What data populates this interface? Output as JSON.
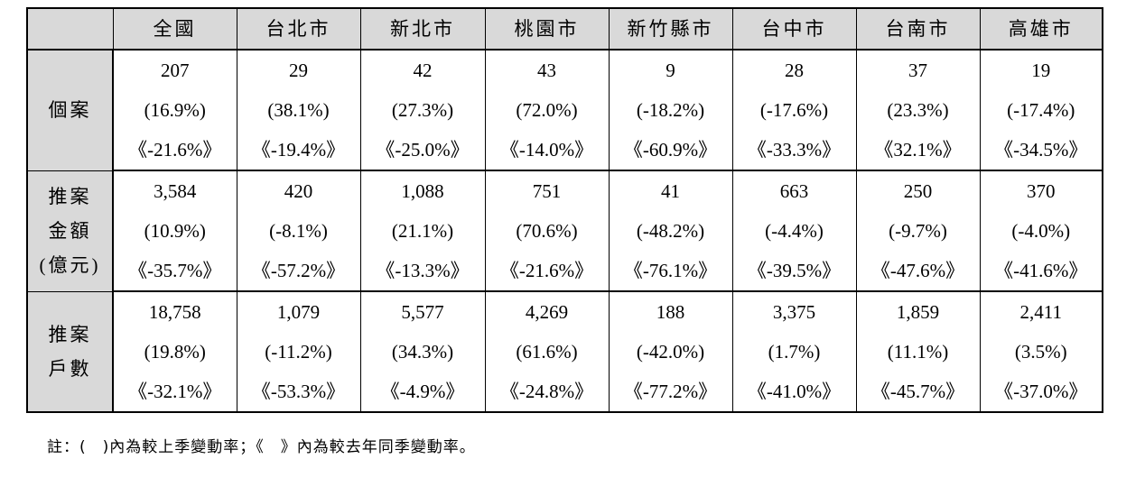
{
  "table": {
    "corner": "",
    "columns": [
      "全國",
      "台北市",
      "新北市",
      "桃園市",
      "新竹縣市",
      "台中市",
      "台南市",
      "高雄市"
    ],
    "groups": [
      {
        "label_lines": [
          "個案"
        ],
        "rows": [
          [
            "207",
            "29",
            "42",
            "43",
            "9",
            "28",
            "37",
            "19"
          ],
          [
            "(16.9%)",
            "(38.1%)",
            "(27.3%)",
            "(72.0%)",
            "(-18.2%)",
            "(-17.6%)",
            "(23.3%)",
            "(-17.4%)"
          ],
          [
            "《-21.6%》",
            "《-19.4%》",
            "《-25.0%》",
            "《-14.0%》",
            "《-60.9%》",
            "《-33.3%》",
            "《32.1%》",
            "《-34.5%》"
          ]
        ]
      },
      {
        "label_lines": [
          "推案",
          "金額",
          "(億元)"
        ],
        "rows": [
          [
            "3,584",
            "420",
            "1,088",
            "751",
            "41",
            "663",
            "250",
            "370"
          ],
          [
            "(10.9%)",
            "(-8.1%)",
            "(21.1%)",
            "(70.6%)",
            "(-48.2%)",
            "(-4.4%)",
            "(-9.7%)",
            "(-4.0%)"
          ],
          [
            "《-35.7%》",
            "《-57.2%》",
            "《-13.3%》",
            "《-21.6%》",
            "《-76.1%》",
            "《-39.5%》",
            "《-47.6%》",
            "《-41.6%》"
          ]
        ]
      },
      {
        "label_lines": [
          "推案",
          "戶數"
        ],
        "rows": [
          [
            "18,758",
            "1,079",
            "5,577",
            "4,269",
            "188",
            "3,375",
            "1,859",
            "2,411"
          ],
          [
            "(19.8%)",
            "(-11.2%)",
            "(34.3%)",
            "(61.6%)",
            "(-42.0%)",
            "(1.7%)",
            "(11.1%)",
            "(3.5%)"
          ],
          [
            "《-32.1%》",
            "《-53.3%》",
            "《-4.9%》",
            "《-24.8%》",
            "《-77.2%》",
            "《-41.0%》",
            "《-45.7%》",
            "《-37.0%》"
          ]
        ]
      }
    ]
  },
  "footnote": "註：(　)內為較上季變動率；《　》內為較去年同季變動率。",
  "colors": {
    "header_background": "#d9d9d9",
    "border": "#000000",
    "text": "#000000"
  }
}
